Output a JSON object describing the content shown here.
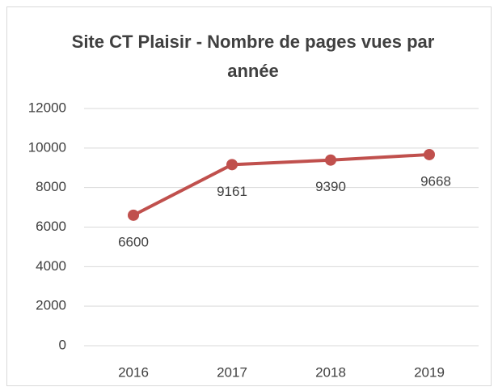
{
  "chart_data": {
    "type": "line",
    "title": "Site CT Plaisir - Nombre de pages vues par année",
    "categories": [
      "2016",
      "2017",
      "2018",
      "2019"
    ],
    "values": [
      6600,
      9161,
      9390,
      9668
    ],
    "color": "#c0504d",
    "ylim": [
      0,
      12000
    ],
    "yticks": [
      0,
      2000,
      4000,
      6000,
      8000,
      10000,
      12000
    ],
    "grid": true
  }
}
